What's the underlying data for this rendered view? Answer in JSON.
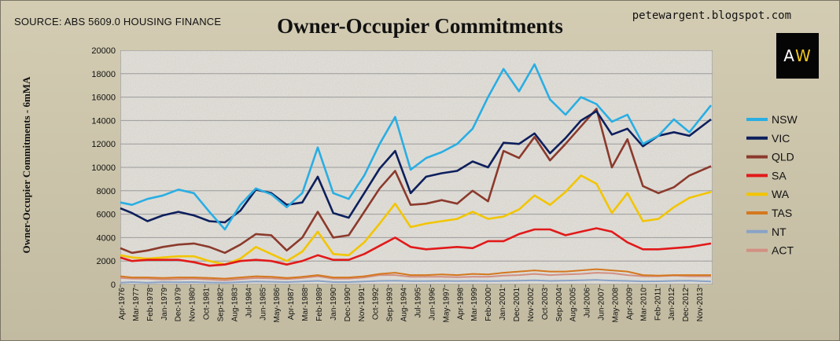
{
  "source_label": "SOURCE: ABS 5609.0 HOUSING FINANCE",
  "blog_label": "petewargent.blogspot.com",
  "logo": {
    "a": "A",
    "w": "W"
  },
  "chart_data": {
    "type": "line",
    "title": "Owner-Occupier Commitments",
    "xlabel": "",
    "ylabel": "Owner-Occupier Commitments - 6mMA",
    "ylim": [
      0,
      20000
    ],
    "yticks": [
      0,
      2000,
      4000,
      6000,
      8000,
      10000,
      12000,
      14000,
      16000,
      18000,
      20000
    ],
    "xlim": [
      1976.25,
      2014.5
    ],
    "x_tick_labels": [
      "Apr-1976",
      "Mar-1977",
      "Feb-1978",
      "Jan-1979",
      "Dec-1979",
      "Nov-1980",
      "Oct-1981",
      "Sep-1982",
      "Aug-1983",
      "Jul-1984",
      "Jun-1985",
      "May-1986",
      "Apr-1987",
      "Mar-1988",
      "Feb-1989",
      "Jan-1990",
      "Dec-1990",
      "Nov-1991",
      "Oct-1992",
      "Sep-1993",
      "Aug-1994",
      "Jul-1995",
      "Jun-1996",
      "May-1997",
      "Apr-1998",
      "Mar-1999",
      "Feb-2000",
      "Jan-2001",
      "Dec-2001",
      "Nov-2002",
      "Oct-2003",
      "Sep-2004",
      "Aug-2005",
      "Jul-2006",
      "Jun-2007",
      "May-2008",
      "Apr-2009",
      "Mar-2010",
      "Feb-2011",
      "Jan-2012",
      "Dec-2012",
      "Nov-2013"
    ],
    "x": [
      1976.25,
      1977,
      1978,
      1979,
      1980,
      1981,
      1982,
      1983,
      1984,
      1985,
      1986,
      1987,
      1988,
      1989,
      1990,
      1991,
      1992,
      1993,
      1994,
      1995,
      1996,
      1997,
      1998,
      1999,
      2000,
      2001,
      2002,
      2003,
      2004,
      2005,
      2006,
      2007,
      2008,
      2009,
      2010,
      2011,
      2012,
      2013,
      2014.4
    ],
    "series": [
      {
        "name": "NSW",
        "color": "#29aee3",
        "values": [
          7000,
          6800,
          7300,
          7600,
          8100,
          7800,
          6200,
          4700,
          6800,
          8200,
          7700,
          6600,
          7800,
          11700,
          7800,
          7300,
          9300,
          12000,
          14300,
          9800,
          10800,
          11300,
          12000,
          13300,
          16000,
          18400,
          16500,
          18800,
          15800,
          14500,
          16000,
          15400,
          13900,
          14500,
          12000,
          12700,
          14100,
          13000,
          15300
        ]
      },
      {
        "name": "VIC",
        "color": "#0d1f5c",
        "values": [
          6500,
          6100,
          5400,
          5900,
          6200,
          5900,
          5400,
          5300,
          6300,
          8100,
          7800,
          6800,
          7000,
          9200,
          6100,
          5700,
          7800,
          9900,
          11400,
          7800,
          9200,
          9500,
          9700,
          10500,
          10000,
          12100,
          12000,
          12900,
          11200,
          12500,
          14000,
          14800,
          12800,
          13300,
          11800,
          12700,
          13000,
          12700,
          14100
        ]
      },
      {
        "name": "QLD",
        "color": "#8b3a2c",
        "values": [
          3100,
          2700,
          2900,
          3200,
          3400,
          3500,
          3200,
          2700,
          3400,
          4300,
          4200,
          2900,
          4000,
          6200,
          4000,
          4200,
          6200,
          8200,
          9700,
          6800,
          6900,
          7200,
          6900,
          8000,
          7100,
          11400,
          10800,
          12600,
          10600,
          12000,
          13500,
          15000,
          10000,
          12400,
          8400,
          7800,
          8300,
          9300,
          10100
        ]
      },
      {
        "name": "SA",
        "color": "#e11a1a",
        "values": [
          2300,
          2000,
          2100,
          2100,
          2100,
          1900,
          1600,
          1700,
          2000,
          2100,
          2000,
          1700,
          2000,
          2500,
          2100,
          2100,
          2600,
          3300,
          4000,
          3200,
          3000,
          3100,
          3200,
          3100,
          3700,
          3700,
          4300,
          4700,
          4700,
          4200,
          4500,
          4800,
          4500,
          3600,
          3000,
          3000,
          3100,
          3200,
          3500
        ]
      },
      {
        "name": "WA",
        "color": "#f2c500",
        "values": [
          2500,
          2300,
          2200,
          2300,
          2400,
          2400,
          2000,
          1700,
          2200,
          3200,
          2600,
          2000,
          2800,
          4500,
          2600,
          2500,
          3600,
          5200,
          6900,
          4900,
          5200,
          5400,
          5600,
          6200,
          5600,
          5800,
          6400,
          7600,
          6800,
          7900,
          9300,
          8600,
          6100,
          7800,
          5400,
          5600,
          6600,
          7400,
          7900
        ]
      },
      {
        "name": "TAS",
        "color": "#d4781e",
        "values": [
          700,
          600,
          600,
          550,
          600,
          600,
          550,
          500,
          600,
          700,
          650,
          550,
          650,
          800,
          600,
          600,
          700,
          900,
          1000,
          800,
          800,
          850,
          800,
          900,
          850,
          1000,
          1100,
          1200,
          1100,
          1100,
          1200,
          1300,
          1200,
          1100,
          800,
          750,
          800,
          800,
          800
        ]
      },
      {
        "name": "NT",
        "color": "#8aa2c6",
        "values": [
          150,
          200,
          150,
          200,
          180,
          200,
          170,
          150,
          200,
          250,
          230,
          200,
          250,
          300,
          200,
          200,
          250,
          300,
          320,
          280,
          280,
          300,
          280,
          300,
          280,
          300,
          320,
          350,
          300,
          330,
          350,
          380,
          330,
          300,
          260,
          270,
          300,
          320,
          250
        ]
      },
      {
        "name": "ACT",
        "color": "#d28f82",
        "values": [
          550,
          500,
          480,
          420,
          450,
          480,
          420,
          350,
          450,
          550,
          520,
          450,
          550,
          700,
          500,
          500,
          600,
          800,
          800,
          650,
          650,
          650,
          620,
          650,
          650,
          750,
          800,
          900,
          800,
          850,
          900,
          1000,
          950,
          800,
          700,
          700,
          750,
          700,
          700
        ]
      }
    ]
  }
}
